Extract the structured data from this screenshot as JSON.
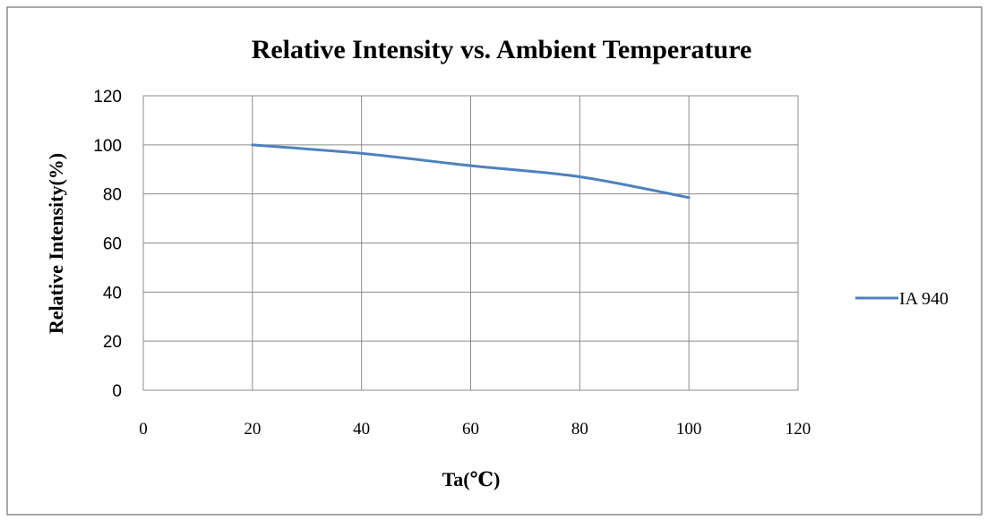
{
  "chart_data": {
    "type": "line",
    "title": "Relative Intensity vs. Ambient Temperature",
    "xlabel": "Ta(℃)",
    "ylabel": "Relative Intensity(%)",
    "xlim": [
      0,
      120
    ],
    "ylim": [
      0,
      120
    ],
    "xticks": [
      0,
      20,
      40,
      60,
      80,
      100,
      120
    ],
    "yticks": [
      0,
      20,
      40,
      60,
      80,
      100,
      120
    ],
    "grid": true,
    "legend_position": "right",
    "series": [
      {
        "name": "IA 940",
        "color": "#4F81BD",
        "x": [
          20,
          40,
          60,
          80,
          100
        ],
        "y": [
          100,
          96.5,
          91.5,
          87,
          78.5
        ]
      }
    ]
  }
}
